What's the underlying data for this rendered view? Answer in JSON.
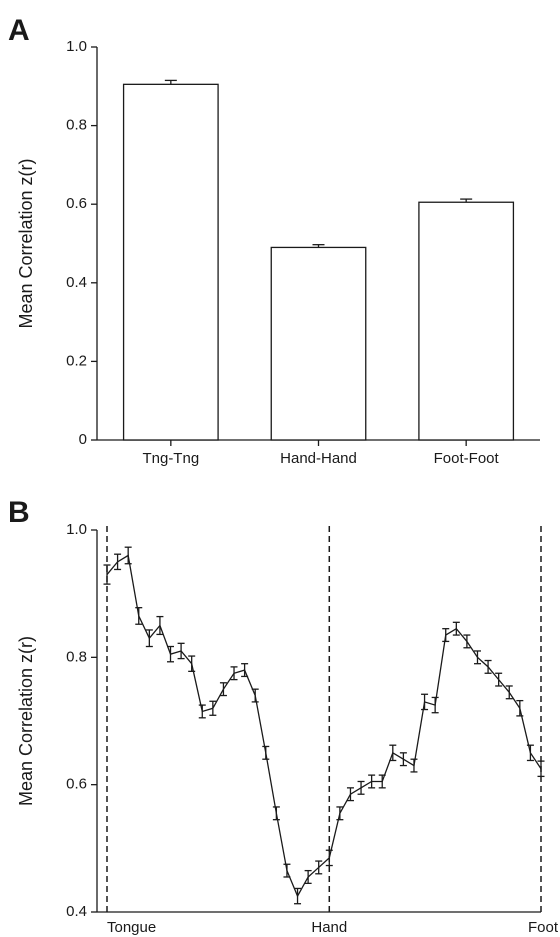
{
  "chart_data": [
    {
      "type": "bar",
      "panel": "A",
      "ylabel": "Mean Correlation z(r)",
      "categories": [
        "Tng-Tng",
        "Hand-Hand",
        "Foot-Foot"
      ],
      "values": [
        0.905,
        0.49,
        0.605
      ],
      "errors": [
        0.01,
        0.007,
        0.008
      ],
      "color": "#ffffff",
      "ylim": [
        0,
        1
      ],
      "yticks": [
        0,
        0.2,
        0.4,
        0.6,
        0.8,
        {
          "value": 1,
          "label": "1.0"
        }
      ]
    },
    {
      "type": "line",
      "panel": "B",
      "ylabel": "Mean Correlation z(r)",
      "categories": [
        "Tongue",
        null,
        null,
        null,
        null,
        null,
        null,
        null,
        null,
        null,
        null,
        null,
        null,
        null,
        null,
        null,
        null,
        null,
        null,
        null,
        null,
        "Hand",
        null,
        null,
        null,
        null,
        null,
        null,
        null,
        null,
        null,
        null,
        null,
        null,
        null,
        null,
        null,
        null,
        null,
        null,
        null,
        "Foot"
      ],
      "values": [
        0.93,
        0.95,
        0.96,
        0.865,
        0.83,
        0.85,
        0.805,
        0.81,
        0.79,
        0.715,
        0.72,
        0.75,
        0.775,
        0.78,
        0.74,
        0.65,
        0.555,
        0.465,
        0.425,
        0.455,
        0.47,
        0.485,
        0.555,
        0.585,
        0.595,
        0.605,
        0.605,
        0.65,
        0.64,
        0.63,
        0.73,
        0.725,
        0.835,
        0.845,
        0.825,
        0.8,
        0.785,
        0.765,
        0.745,
        0.72,
        0.65,
        0.625
      ],
      "errors": [
        0.015,
        0.012,
        0.013,
        0.013,
        0.013,
        0.014,
        0.012,
        0.012,
        0.012,
        0.01,
        0.011,
        0.01,
        0.01,
        0.01,
        0.01,
        0.01,
        0.01,
        0.01,
        0.012,
        0.01,
        0.01,
        0.012,
        0.01,
        0.01,
        0.01,
        0.01,
        0.01,
        0.012,
        0.01,
        0.01,
        0.012,
        0.012,
        0.01,
        0.01,
        0.01,
        0.01,
        0.01,
        0.01,
        0.01,
        0.012,
        0.012,
        0.012
      ],
      "color": "#1a1a1a",
      "ylim": [
        0.4,
        1
      ],
      "yticks": [
        0.4,
        0.6,
        0.8,
        {
          "value": 1,
          "label": "1.0"
        }
      ]
    }
  ]
}
